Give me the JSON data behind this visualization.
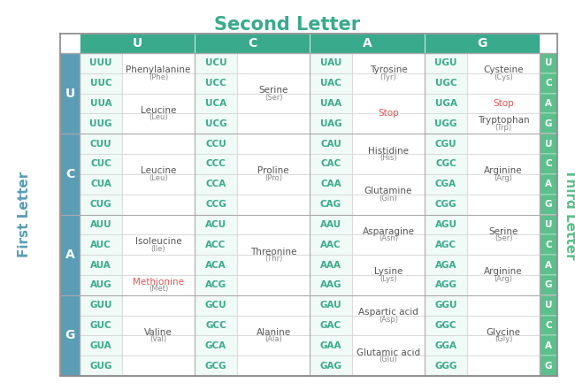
{
  "title": "Second Letter",
  "title_color": "#3aaa8c",
  "second_letters": [
    "U",
    "C",
    "A",
    "G"
  ],
  "first_letters": [
    "U",
    "C",
    "A",
    "G"
  ],
  "third_letters": [
    "U",
    "C",
    "A",
    "G"
  ],
  "header_bg": "#3aaa8c",
  "header_text_color": "#ffffff",
  "first_letter_bg": "#5b9db5",
  "first_letter_text_color": "#ffffff",
  "third_letter_bg": "#5cbf8c",
  "third_letter_text_color": "#ffffff",
  "codon_color": "#3aaa8c",
  "aa_color": "#555555",
  "aa_abbr_color": "#888888",
  "stop_color": "#e05555",
  "met_color": "#e05555",
  "grid_color": "#cccccc",
  "bg_color": "#ffffff",
  "codon_table": {
    "UU": [
      [
        "Phenylalanine",
        "(Phe)",
        false,
        false
      ],
      [
        "Phenylalanine",
        "(Phe)",
        false,
        false
      ],
      [
        "Leucine",
        "(Leu)",
        false,
        false
      ],
      [
        "Leucine",
        "(Leu)",
        false,
        false
      ]
    ],
    "UC": [
      [
        "Serine",
        "(Ser)",
        false,
        false
      ],
      [
        "Serine",
        "(Ser)",
        false,
        false
      ],
      [
        "Serine",
        "(Ser)",
        false,
        false
      ],
      [
        "Serine",
        "(Ser)",
        false,
        false
      ]
    ],
    "UA": [
      [
        "Tyrosine",
        "(Tyr)",
        false,
        false
      ],
      [
        "Tyrosine",
        "(Tyr)",
        false,
        false
      ],
      [
        "Stop",
        "",
        false,
        true
      ],
      [
        "Stop",
        "",
        false,
        true
      ]
    ],
    "UG": [
      [
        "Cysteine",
        "(Cys)",
        false,
        false
      ],
      [
        "Cysteine",
        "(Cys)",
        false,
        false
      ],
      [
        "Stop",
        "",
        false,
        true
      ],
      [
        "Tryptophan",
        "(Trp)",
        false,
        false
      ]
    ],
    "CU": [
      [
        "Leucine",
        "(Leu)",
        false,
        false
      ],
      [
        "Leucine",
        "(Leu)",
        false,
        false
      ],
      [
        "Leucine",
        "(Leu)",
        false,
        false
      ],
      [
        "Leucine",
        "(Leu)",
        false,
        false
      ]
    ],
    "CC": [
      [
        "Proline",
        "(Pro)",
        false,
        false
      ],
      [
        "Proline",
        "(Pro)",
        false,
        false
      ],
      [
        "Proline",
        "(Pro)",
        false,
        false
      ],
      [
        "Proline",
        "(Pro)",
        false,
        false
      ]
    ],
    "CA": [
      [
        "Histidine",
        "(His)",
        false,
        false
      ],
      [
        "Histidine",
        "(His)",
        false,
        false
      ],
      [
        "Glutamine",
        "(Gln)",
        false,
        false
      ],
      [
        "Glutamine",
        "(Gln)",
        false,
        false
      ]
    ],
    "CG": [
      [
        "Arginine",
        "(Arg)",
        false,
        false
      ],
      [
        "Arginine",
        "(Arg)",
        false,
        false
      ],
      [
        "Arginine",
        "(Arg)",
        false,
        false
      ],
      [
        "Arginine",
        "(Arg)",
        false,
        false
      ]
    ],
    "AU": [
      [
        "Isoleucine",
        "(Ile)",
        false,
        false
      ],
      [
        "Isoleucine",
        "(Ile)",
        false,
        false
      ],
      [
        "Isoleucine",
        "(Ile)",
        false,
        false
      ],
      [
        "Methionine",
        "(Met)",
        true,
        false
      ]
    ],
    "AC": [
      [
        "Threonine",
        "(Thr)",
        false,
        false
      ],
      [
        "Threonine",
        "(Thr)",
        false,
        false
      ],
      [
        "Threonine",
        "(Thr)",
        false,
        false
      ],
      [
        "Threonine",
        "(Thr)",
        false,
        false
      ]
    ],
    "AA": [
      [
        "Asparagine",
        "(Asn)",
        false,
        false
      ],
      [
        "Asparagine",
        "(Asn)",
        false,
        false
      ],
      [
        "Lysine",
        "(Lys)",
        false,
        false
      ],
      [
        "Lysine",
        "(Lys)",
        false,
        false
      ]
    ],
    "AG": [
      [
        "Serine",
        "(Ser)",
        false,
        false
      ],
      [
        "Serine",
        "(Ser)",
        false,
        false
      ],
      [
        "Arginine",
        "(Arg)",
        false,
        false
      ],
      [
        "Arginine",
        "(Arg)",
        false,
        false
      ]
    ],
    "GU": [
      [
        "Valine",
        "(Val)",
        false,
        false
      ],
      [
        "Valine",
        "(Val)",
        false,
        false
      ],
      [
        "Valine",
        "(Val)",
        false,
        false
      ],
      [
        "Valine",
        "(Val)",
        false,
        false
      ]
    ],
    "GC": [
      [
        "Alanine",
        "(Ala)",
        false,
        false
      ],
      [
        "Alanine",
        "(Ala)",
        false,
        false
      ],
      [
        "Alanine",
        "(Ala)",
        false,
        false
      ],
      [
        "Alanine",
        "(Ala)",
        false,
        false
      ]
    ],
    "GA": [
      [
        "Aspartic acid",
        "(Asp)",
        false,
        false
      ],
      [
        "Aspartic acid",
        "(Asp)",
        false,
        false
      ],
      [
        "Glutamic acid",
        "(Glu)",
        false,
        false
      ],
      [
        "Glutamic acid",
        "(Glu)",
        false,
        false
      ]
    ],
    "GG": [
      [
        "Glycine",
        "(Gly)",
        false,
        false
      ],
      [
        "Glycine",
        "(Gly)",
        false,
        false
      ],
      [
        "Glycine",
        "(Gly)",
        false,
        false
      ],
      [
        "Glycine",
        "(Gly)",
        false,
        false
      ]
    ]
  }
}
